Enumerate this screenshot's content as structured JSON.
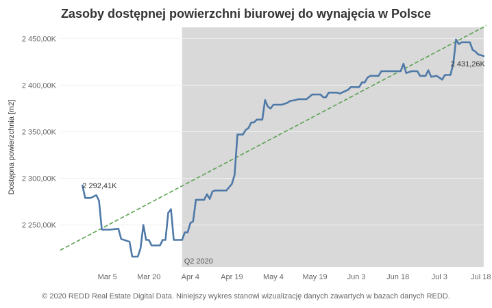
{
  "chart_data": {
    "type": "line",
    "title": "Zasoby dostępnej powierzchni biurowej do wynajęcia w Polsce",
    "xlabel": "",
    "ylabel": "Dostępna powierzchnia [m2]",
    "ylim": [
      2205000,
      2462000
    ],
    "xlim": [
      "2020-02-17",
      "2020-07-22"
    ],
    "y_ticks": [
      {
        "value": 2250000,
        "label": "2 250,00K"
      },
      {
        "value": 2300000,
        "label": "2 300,00K"
      },
      {
        "value": 2350000,
        "label": "2 350,00K"
      },
      {
        "value": 2400000,
        "label": "2 400,00K"
      },
      {
        "value": 2450000,
        "label": "2 450,00K"
      }
    ],
    "x_ticks": [
      {
        "date": "2020-03-05",
        "label": "Mar 5"
      },
      {
        "date": "2020-03-20",
        "label": "Mar 20"
      },
      {
        "date": "2020-04-04",
        "label": "Apr 4"
      },
      {
        "date": "2020-04-19",
        "label": "Apr 19"
      },
      {
        "date": "2020-05-04",
        "label": "May 4"
      },
      {
        "date": "2020-05-19",
        "label": "May 19"
      },
      {
        "date": "2020-06-03",
        "label": "Jun 3"
      },
      {
        "date": "2020-06-18",
        "label": "Jun 18"
      },
      {
        "date": "2020-07-03",
        "label": "Jul 3"
      },
      {
        "date": "2020-07-18",
        "label": "Jul 18"
      }
    ],
    "shaded_period": {
      "start": "2020-04-01",
      "end": "2020-07-19",
      "label": "Q2 2020",
      "color": "#d9d9d9"
    },
    "grid": true,
    "series": [
      {
        "color": "#4e79a7",
        "points": [
          [
            "2020-02-25",
            2292410
          ],
          [
            "2020-02-26",
            2279000
          ],
          [
            "2020-02-28",
            2279000
          ],
          [
            "2020-03-01",
            2282000
          ],
          [
            "2020-03-02",
            2276000
          ],
          [
            "2020-03-03",
            2245000
          ],
          [
            "2020-03-06",
            2245000
          ],
          [
            "2020-03-09",
            2246000
          ],
          [
            "2020-03-10",
            2235000
          ],
          [
            "2020-03-13",
            2232000
          ],
          [
            "2020-03-14",
            2216000
          ],
          [
            "2020-03-16",
            2216000
          ],
          [
            "2020-03-17",
            2225000
          ],
          [
            "2020-03-18",
            2250000
          ],
          [
            "2020-03-19",
            2234000
          ],
          [
            "2020-03-20",
            2234000
          ],
          [
            "2020-03-21",
            2228000
          ],
          [
            "2020-03-24",
            2228000
          ],
          [
            "2020-03-25",
            2234000
          ],
          [
            "2020-03-26",
            2234000
          ],
          [
            "2020-03-27",
            2263000
          ],
          [
            "2020-03-28",
            2267000
          ],
          [
            "2020-03-29",
            2234000
          ],
          [
            "2020-04-01",
            2234000
          ],
          [
            "2020-04-02",
            2242000
          ],
          [
            "2020-04-03",
            2242000
          ],
          [
            "2020-04-04",
            2252000
          ],
          [
            "2020-04-05",
            2254000
          ],
          [
            "2020-04-06",
            2277000
          ],
          [
            "2020-04-09",
            2277000
          ],
          [
            "2020-04-10",
            2283000
          ],
          [
            "2020-04-11",
            2278000
          ],
          [
            "2020-04-12",
            2286000
          ],
          [
            "2020-04-13",
            2287000
          ],
          [
            "2020-04-17",
            2287000
          ],
          [
            "2020-04-19",
            2294000
          ],
          [
            "2020-04-20",
            2304000
          ],
          [
            "2020-04-21",
            2347000
          ],
          [
            "2020-04-23",
            2347000
          ],
          [
            "2020-04-24",
            2352000
          ],
          [
            "2020-04-25",
            2354000
          ],
          [
            "2020-04-26",
            2360000
          ],
          [
            "2020-04-27",
            2360000
          ],
          [
            "2020-04-28",
            2363000
          ],
          [
            "2020-04-30",
            2363000
          ],
          [
            "2020-05-01",
            2384000
          ],
          [
            "2020-05-02",
            2377000
          ],
          [
            "2020-05-03",
            2375000
          ],
          [
            "2020-05-04",
            2379000
          ],
          [
            "2020-05-07",
            2379000
          ],
          [
            "2020-05-09",
            2381000
          ],
          [
            "2020-05-10",
            2383000
          ],
          [
            "2020-05-12",
            2384000
          ],
          [
            "2020-05-13",
            2385000
          ],
          [
            "2020-05-16",
            2385000
          ],
          [
            "2020-05-18",
            2390000
          ],
          [
            "2020-05-21",
            2390000
          ],
          [
            "2020-05-22",
            2387000
          ],
          [
            "2020-05-23",
            2387000
          ],
          [
            "2020-05-24",
            2392000
          ],
          [
            "2020-05-27",
            2392000
          ],
          [
            "2020-05-28",
            2391000
          ],
          [
            "2020-05-31",
            2395000
          ],
          [
            "2020-06-01",
            2398000
          ],
          [
            "2020-06-04",
            2398000
          ],
          [
            "2020-06-05",
            2403000
          ],
          [
            "2020-06-06",
            2403000
          ],
          [
            "2020-06-07",
            2408000
          ],
          [
            "2020-06-08",
            2410000
          ],
          [
            "2020-06-11",
            2410000
          ],
          [
            "2020-06-12",
            2415000
          ],
          [
            "2020-06-19",
            2415000
          ],
          [
            "2020-06-20",
            2423000
          ],
          [
            "2020-06-21",
            2413000
          ],
          [
            "2020-06-22",
            2414000
          ],
          [
            "2020-06-23",
            2415000
          ],
          [
            "2020-06-25",
            2415000
          ],
          [
            "2020-06-26",
            2410000
          ],
          [
            "2020-06-28",
            2410000
          ],
          [
            "2020-06-29",
            2416000
          ],
          [
            "2020-06-30",
            2409000
          ],
          [
            "2020-07-02",
            2410000
          ],
          [
            "2020-07-03",
            2408000
          ],
          [
            "2020-07-04",
            2406000
          ],
          [
            "2020-07-05",
            2411000
          ],
          [
            "2020-07-07",
            2411000
          ],
          [
            "2020-07-08",
            2423000
          ],
          [
            "2020-07-09",
            2449000
          ],
          [
            "2020-07-10",
            2444000
          ],
          [
            "2020-07-11",
            2446000
          ],
          [
            "2020-07-14",
            2446000
          ],
          [
            "2020-07-15",
            2438000
          ],
          [
            "2020-07-16",
            2436000
          ],
          [
            "2020-07-17",
            2433000
          ],
          [
            "2020-07-19",
            2431260
          ]
        ]
      }
    ],
    "trend_line": {
      "color": "#59a14f",
      "start": [
        "2020-02-17",
        2223000
      ],
      "end": [
        "2020-07-20",
        2464000
      ]
    },
    "annotations": [
      {
        "text": "2 292,41K",
        "date": "2020-02-25",
        "value": 2292410
      },
      {
        "text": "2 431,26K",
        "date": "2020-07-19",
        "value": 2431260
      }
    ]
  },
  "footer": "© 2020 REDD Real Estate Digital Data. Niniejszy wykres stanowi wizualizację danych zawartych w bazach danych REDD."
}
